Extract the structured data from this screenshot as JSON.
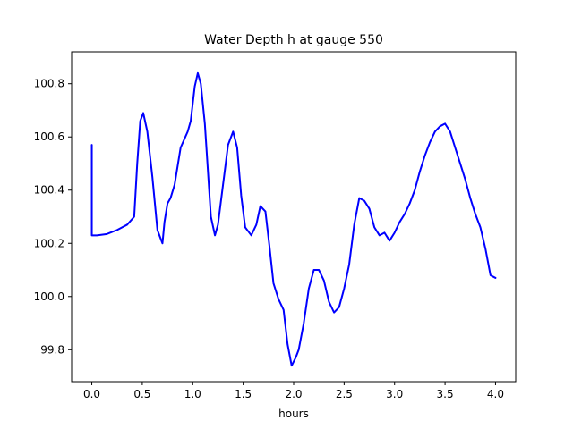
{
  "chart_data": {
    "type": "line",
    "title": "Water Depth h at gauge 550",
    "xlabel": "hours",
    "ylabel": "",
    "xlim": [
      -0.2,
      4.2
    ],
    "ylim": [
      99.68,
      100.92
    ],
    "grid": false,
    "xticks": [
      0.0,
      0.5,
      1.0,
      1.5,
      2.0,
      2.5,
      3.0,
      3.5,
      4.0
    ],
    "xtick_labels": [
      "0.0",
      "0.5",
      "1.0",
      "1.5",
      "2.0",
      "2.5",
      "3.0",
      "3.5",
      "4.0"
    ],
    "yticks": [
      99.8,
      100.0,
      100.2,
      100.4,
      100.6,
      100.8
    ],
    "ytick_labels": [
      "99.8",
      "100.0",
      "100.2",
      "100.4",
      "100.6",
      "100.8"
    ],
    "series": [
      {
        "color": "#0000ff",
        "x": [
          0.0,
          0.0,
          0.05,
          0.15,
          0.25,
          0.35,
          0.42,
          0.45,
          0.48,
          0.51,
          0.55,
          0.6,
          0.65,
          0.7,
          0.72,
          0.75,
          0.78,
          0.82,
          0.88,
          0.95,
          0.98,
          1.02,
          1.05,
          1.08,
          1.12,
          1.18,
          1.22,
          1.25,
          1.3,
          1.35,
          1.4,
          1.44,
          1.48,
          1.52,
          1.58,
          1.63,
          1.67,
          1.72,
          1.76,
          1.8,
          1.85,
          1.9,
          1.94,
          1.98,
          2.02,
          2.05,
          2.1,
          2.15,
          2.2,
          2.25,
          2.3,
          2.35,
          2.4,
          2.45,
          2.5,
          2.55,
          2.6,
          2.65,
          2.7,
          2.75,
          2.8,
          2.85,
          2.9,
          2.95,
          3.0,
          3.05,
          3.1,
          3.15,
          3.2,
          3.25,
          3.3,
          3.35,
          3.4,
          3.45,
          3.5,
          3.55,
          3.6,
          3.65,
          3.7,
          3.75,
          3.8,
          3.85,
          3.9,
          3.95,
          4.0
        ],
        "y": [
          100.57,
          100.23,
          100.23,
          100.235,
          100.25,
          100.27,
          100.3,
          100.5,
          100.66,
          100.69,
          100.62,
          100.45,
          100.25,
          100.2,
          100.28,
          100.35,
          100.37,
          100.42,
          100.56,
          100.62,
          100.66,
          100.79,
          100.84,
          100.8,
          100.65,
          100.3,
          100.23,
          100.27,
          100.42,
          100.57,
          100.62,
          100.56,
          100.38,
          100.26,
          100.23,
          100.27,
          100.34,
          100.32,
          100.19,
          100.05,
          99.99,
          99.95,
          99.82,
          99.74,
          99.77,
          99.8,
          99.9,
          100.03,
          100.1,
          100.1,
          100.06,
          99.98,
          99.94,
          99.96,
          100.03,
          100.12,
          100.27,
          100.37,
          100.36,
          100.33,
          100.26,
          100.23,
          100.24,
          100.21,
          100.24,
          100.28,
          100.31,
          100.35,
          100.4,
          100.47,
          100.53,
          100.58,
          100.62,
          100.64,
          100.65,
          100.62,
          100.56,
          100.5,
          100.44,
          100.37,
          100.31,
          100.26,
          100.18,
          100.08,
          100.07
        ]
      }
    ]
  }
}
